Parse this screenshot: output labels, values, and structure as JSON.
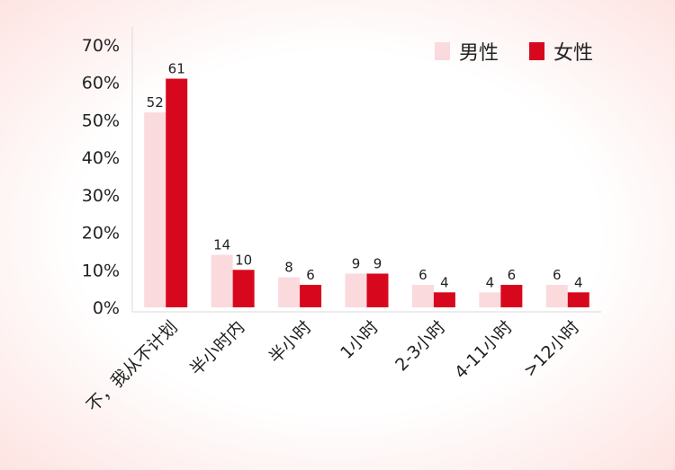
{
  "chart_data": {
    "type": "bar",
    "title": "",
    "xlabel": "",
    "ylabel": "",
    "categories": [
      "不，我从不计划",
      "半小时内",
      "半小时",
      "1小时",
      "2-3小时",
      "4-11小时",
      ">12小时"
    ],
    "series": [
      {
        "name": "男性",
        "color": "#fadadd",
        "values": [
          52,
          14,
          8,
          9,
          6,
          4,
          6
        ]
      },
      {
        "name": "女性",
        "color": "#d7081e",
        "values": [
          61,
          10,
          6,
          9,
          4,
          6,
          4
        ]
      }
    ],
    "ylim": [
      0,
      70
    ],
    "yticks": [
      "0%",
      "10%",
      "20%",
      "30%",
      "40%",
      "50%",
      "60%",
      "70%"
    ],
    "legend_position": "top-right",
    "grid": false
  }
}
